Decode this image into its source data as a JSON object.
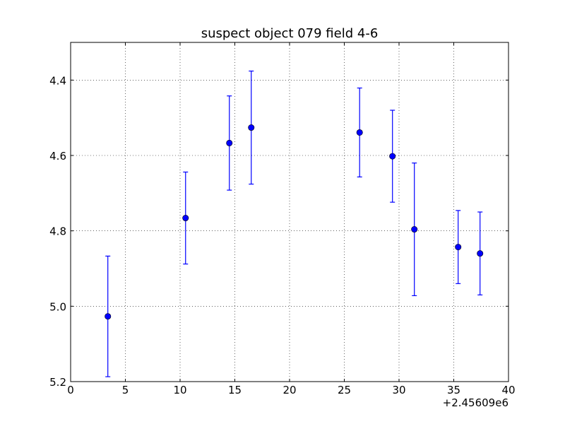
{
  "chart_data": {
    "type": "scatter",
    "title": "suspect object 079 field 4-6",
    "xlabel": "",
    "ylabel": "",
    "x_offset_label": "+2.45609e6",
    "xlim": [
      0,
      40
    ],
    "ylim": [
      5.2,
      4.3
    ],
    "y_inverted": true,
    "grid": true,
    "x_ticks": [
      0,
      5,
      10,
      15,
      20,
      25,
      30,
      35,
      40
    ],
    "x_tick_labels": [
      "0",
      "5",
      "10",
      "15",
      "20",
      "25",
      "30",
      "35",
      "40"
    ],
    "y_ticks": [
      4.4,
      4.6,
      4.8,
      5.0,
      5.2
    ],
    "y_tick_labels": [
      "4.4",
      "4.6",
      "4.8",
      "5.0",
      "5.2"
    ],
    "marker_color": "#0000ff",
    "errorbar_color": "#0000ff",
    "points": [
      {
        "x": 3.4,
        "y": 5.027,
        "yerr": 0.16
      },
      {
        "x": 10.5,
        "y": 4.766,
        "yerr": 0.122
      },
      {
        "x": 14.5,
        "y": 4.567,
        "yerr": 0.125
      },
      {
        "x": 16.5,
        "y": 4.526,
        "yerr": 0.15
      },
      {
        "x": 26.4,
        "y": 4.539,
        "yerr": 0.118
      },
      {
        "x": 29.4,
        "y": 4.602,
        "yerr": 0.122
      },
      {
        "x": 31.4,
        "y": 4.796,
        "yerr": 0.176
      },
      {
        "x": 35.4,
        "y": 4.843,
        "yerr": 0.097
      },
      {
        "x": 37.4,
        "y": 4.86,
        "yerr": 0.11
      }
    ]
  }
}
